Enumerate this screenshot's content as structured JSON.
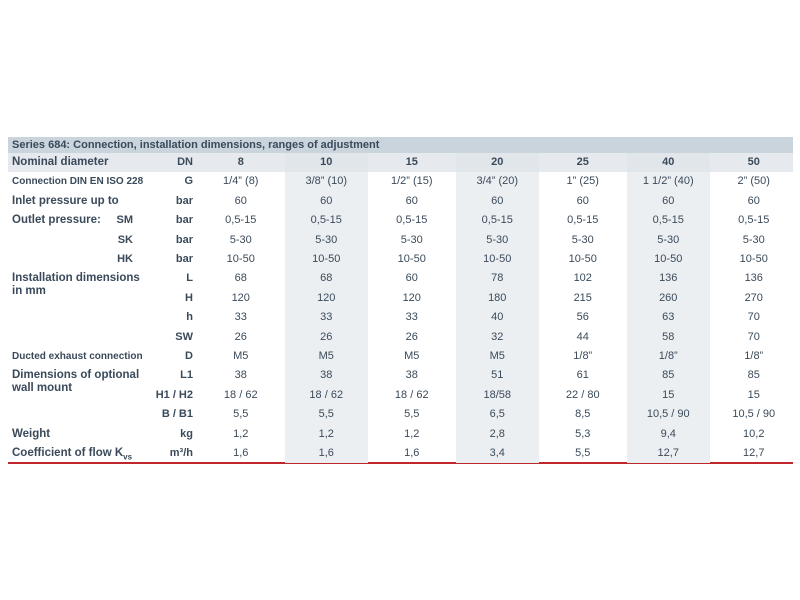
{
  "table": {
    "title": "Series 684: Connection, installation dimensions, ranges of adjustment",
    "header": {
      "label": "Nominal diameter",
      "unit": "DN",
      "values": [
        "8",
        "10",
        "15",
        "20",
        "25",
        "40",
        "50"
      ]
    },
    "rows": [
      {
        "label": "Connection DIN EN ISO 228",
        "small": true,
        "unit": "G",
        "values": [
          "1/4” (8)",
          "3/8” (10)",
          "1/2” (15)",
          "3/4” (20)",
          "1” (25)",
          "1 1/2” (40)",
          "2” (50)"
        ]
      },
      {
        "label": "Inlet pressure up to",
        "unit": "bar",
        "values": [
          "60",
          "60",
          "60",
          "60",
          "60",
          "60",
          "60"
        ]
      },
      {
        "label": "Outlet pressure:",
        "sublabel": "SM",
        "unit": "bar",
        "values": [
          "0,5-15",
          "0,5-15",
          "0,5-15",
          "0,5-15",
          "0,5-15",
          "0,5-15",
          "0,5-15"
        ]
      },
      {
        "sublabel": "SK",
        "unit": "bar",
        "values": [
          "5-30",
          "5-30",
          "5-30",
          "5-30",
          "5-30",
          "5-30",
          "5-30"
        ]
      },
      {
        "sublabel": "HK",
        "unit": "bar",
        "values": [
          "10-50",
          "10-50",
          "10-50",
          "10-50",
          "10-50",
          "10-50",
          "10-50"
        ]
      },
      {
        "label": "Installation dimensions in mm",
        "unit": "L",
        "values": [
          "68",
          "68",
          "60",
          "78",
          "102",
          "136",
          "136"
        ]
      },
      {
        "unit": "H",
        "values": [
          "120",
          "120",
          "120",
          "180",
          "215",
          "260",
          "270"
        ]
      },
      {
        "unit": "h",
        "values": [
          "33",
          "33",
          "33",
          "40",
          "56",
          "63",
          "70"
        ]
      },
      {
        "unit": "SW",
        "values": [
          "26",
          "26",
          "26",
          "32",
          "44",
          "58",
          "70"
        ]
      },
      {
        "label": "Ducted exhaust connection",
        "small": true,
        "unit": "D",
        "values": [
          "M5",
          "M5",
          "M5",
          "M5",
          "1/8”",
          "1/8”",
          "1/8”"
        ]
      },
      {
        "label": "Dimensions of optional wall mount",
        "unit": "L1",
        "values": [
          "38",
          "38",
          "38",
          "51",
          "61",
          "85",
          "85"
        ]
      },
      {
        "unit": "H1 / H2",
        "values": [
          "18 / 62",
          "18 / 62",
          "18 / 62",
          "18/58",
          "22 / 80",
          "15",
          "15"
        ]
      },
      {
        "unit": "B / B1",
        "values": [
          "5,5",
          "5,5",
          "5,5",
          "6,5",
          "8,5",
          "10,5 / 90",
          "10,5 / 90"
        ]
      },
      {
        "label": "Weight",
        "unit": "kg",
        "values": [
          "1,2",
          "1,2",
          "1,2",
          "2,8",
          "5,3",
          "9,4",
          "10,2"
        ]
      },
      {
        "label": "Coefficient of flow K",
        "subscript": "vs",
        "unit": "m³/h",
        "values": [
          "1,6",
          "1,6",
          "1,6",
          "3,4",
          "5,5",
          "12,7",
          "12,7"
        ]
      }
    ]
  }
}
